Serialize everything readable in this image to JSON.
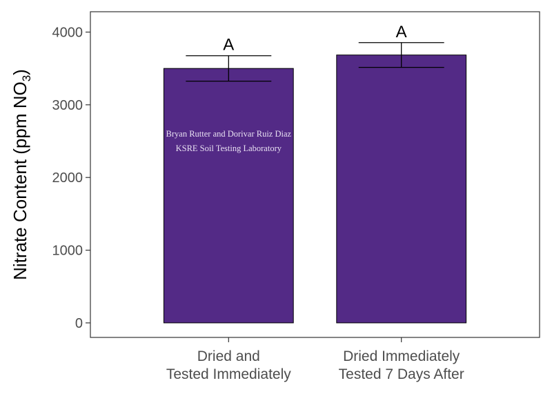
{
  "chart_data": {
    "type": "bar",
    "categories": [
      [
        "Dried and",
        "Tested Immediately"
      ],
      [
        "Dried Immediately",
        "Tested 7 Days After"
      ]
    ],
    "values": [
      3500,
      3685
    ],
    "error_low": [
      3325,
      3515
    ],
    "error_high": [
      3675,
      3855
    ],
    "significance_labels": [
      "A",
      "A"
    ],
    "ylabel": "Nitrate Content (ppm NO",
    "ylabel_subscript": "3",
    "ylabel_suffix": ")",
    "ylim": [
      -200,
      4280
    ],
    "yticks": [
      0,
      1000,
      2000,
      3000,
      4000
    ],
    "bar_color": "#532a86",
    "grid": false,
    "legend": "none",
    "watermark": [
      "Bryan Rutter and Dorivar Ruiz Diaz",
      "KSRE Soil Testing Laboratory"
    ]
  }
}
